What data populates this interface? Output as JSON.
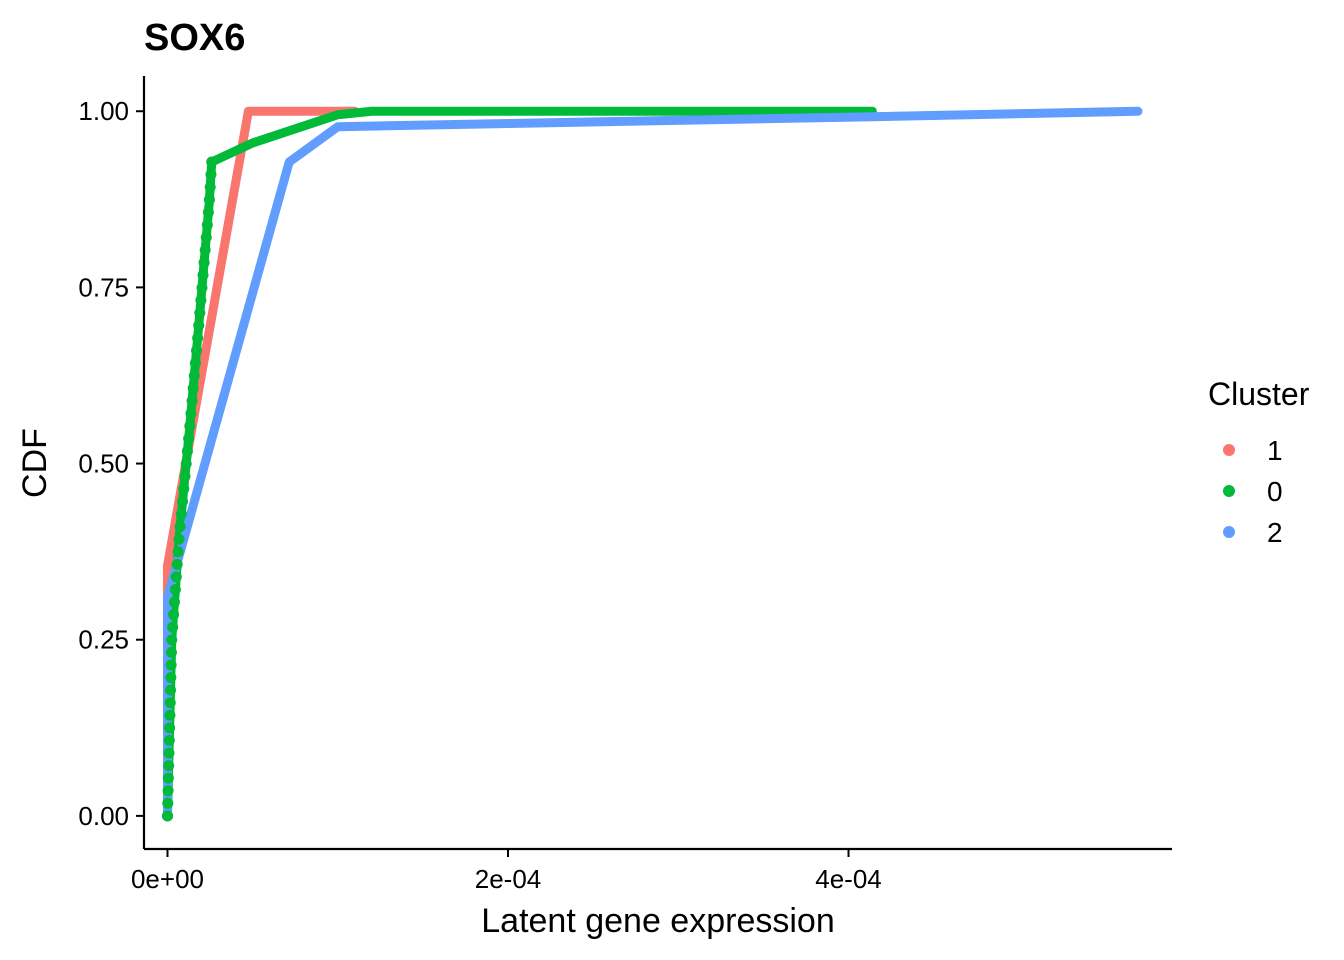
{
  "chart_data": {
    "type": "line",
    "title": "SOX6",
    "xlabel": "Latent gene expression",
    "ylabel": "CDF",
    "xlim": [
      -1.38e-05,
      0.00059
    ],
    "ylim": [
      -0.047,
      1.05
    ],
    "x_ticks": [
      {
        "value": 0,
        "label": "0e+00"
      },
      {
        "value": 0.0002,
        "label": "2e-04"
      },
      {
        "value": 0.0004,
        "label": "4e-04"
      }
    ],
    "y_ticks": [
      {
        "value": 0,
        "label": "0.00"
      },
      {
        "value": 0.25,
        "label": "0.25"
      },
      {
        "value": 0.5,
        "label": "0.50"
      },
      {
        "value": 0.75,
        "label": "0.75"
      },
      {
        "value": 1.0,
        "label": "1.00"
      }
    ],
    "grid": false,
    "legend": {
      "title": "Cluster",
      "position": "right",
      "entries": [
        {
          "label": "1",
          "color": "#F8766D"
        },
        {
          "label": "0",
          "color": "#00BA38"
        },
        {
          "label": "2",
          "color": "#619CFF"
        }
      ]
    },
    "series": [
      {
        "name": "1",
        "color": "#F8766D",
        "points": [
          [
            0,
            0.0
          ],
          [
            0,
            0.355
          ],
          [
            4.75e-05,
            1.0
          ],
          [
            0.00011,
            1.0
          ]
        ]
      },
      {
        "name": "0",
        "color": "#00BA38",
        "points": [
          [
            0,
            0.0
          ],
          [
            2.5e-06,
            0.25
          ],
          [
            7e-06,
            0.4
          ],
          [
            1.3e-05,
            0.55
          ],
          [
            1.85e-05,
            0.7
          ],
          [
            2.45e-05,
            0.87
          ],
          [
            2.6e-05,
            0.928
          ],
          [
            5e-05,
            0.955
          ],
          [
            0.0001,
            0.995
          ],
          [
            0.00012,
            1.0
          ],
          [
            0.000414,
            1.0
          ]
        ]
      },
      {
        "name": "2",
        "color": "#619CFF",
        "points": [
          [
            0,
            0.0
          ],
          [
            0,
            0.31
          ],
          [
            7.15e-05,
            0.928
          ],
          [
            0.0001,
            0.978
          ],
          [
            0.00041,
            0.992
          ],
          [
            0.00057,
            1.0
          ]
        ]
      }
    ]
  }
}
